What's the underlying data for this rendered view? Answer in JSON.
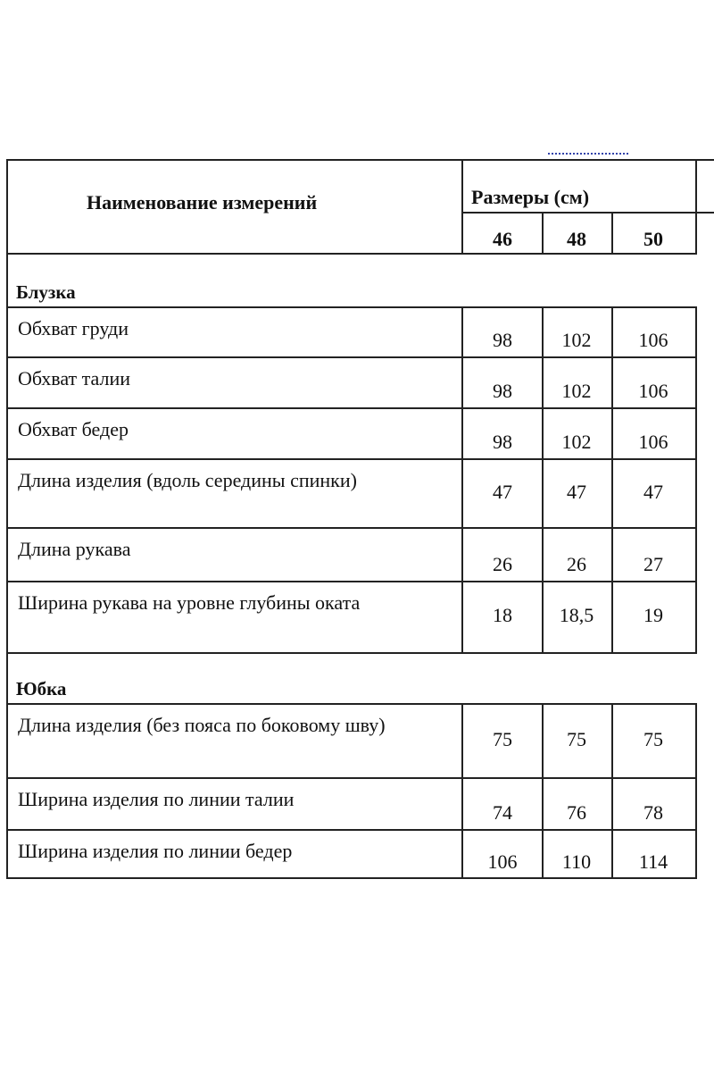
{
  "header": {
    "name_col": "Наименование измерений",
    "sizes_label": "Размеры (см)",
    "sizes": [
      "46",
      "48",
      "50"
    ]
  },
  "sections": [
    {
      "title": "Блузка",
      "rows": [
        {
          "label": "Обхват груди",
          "values": [
            "98",
            "102",
            "106"
          ]
        },
        {
          "label": "Обхват талии",
          "values": [
            "98",
            "102",
            "106"
          ]
        },
        {
          "label": "Обхват бедер",
          "values": [
            "98",
            "102",
            "106"
          ]
        },
        {
          "label": "Длина изделия (вдоль середины спинки)",
          "values": [
            "47",
            "47",
            "47"
          ]
        },
        {
          "label": "Длина рукава",
          "values": [
            "26",
            "26",
            "27"
          ]
        },
        {
          "label": "Ширина рукава на уровне глубины оката",
          "values": [
            "18",
            "18,5",
            "19"
          ]
        }
      ]
    },
    {
      "title": "Юбка",
      "rows": [
        {
          "label": "Длина изделия (без пояса по боковому шву)",
          "values": [
            "75",
            "75",
            "75"
          ]
        },
        {
          "label": "Ширина изделия по линии талии",
          "values": [
            "74",
            "76",
            "78"
          ]
        },
        {
          "label": "Ширина изделия по линии бедер",
          "values": [
            "106",
            "110",
            "114"
          ]
        }
      ]
    }
  ]
}
